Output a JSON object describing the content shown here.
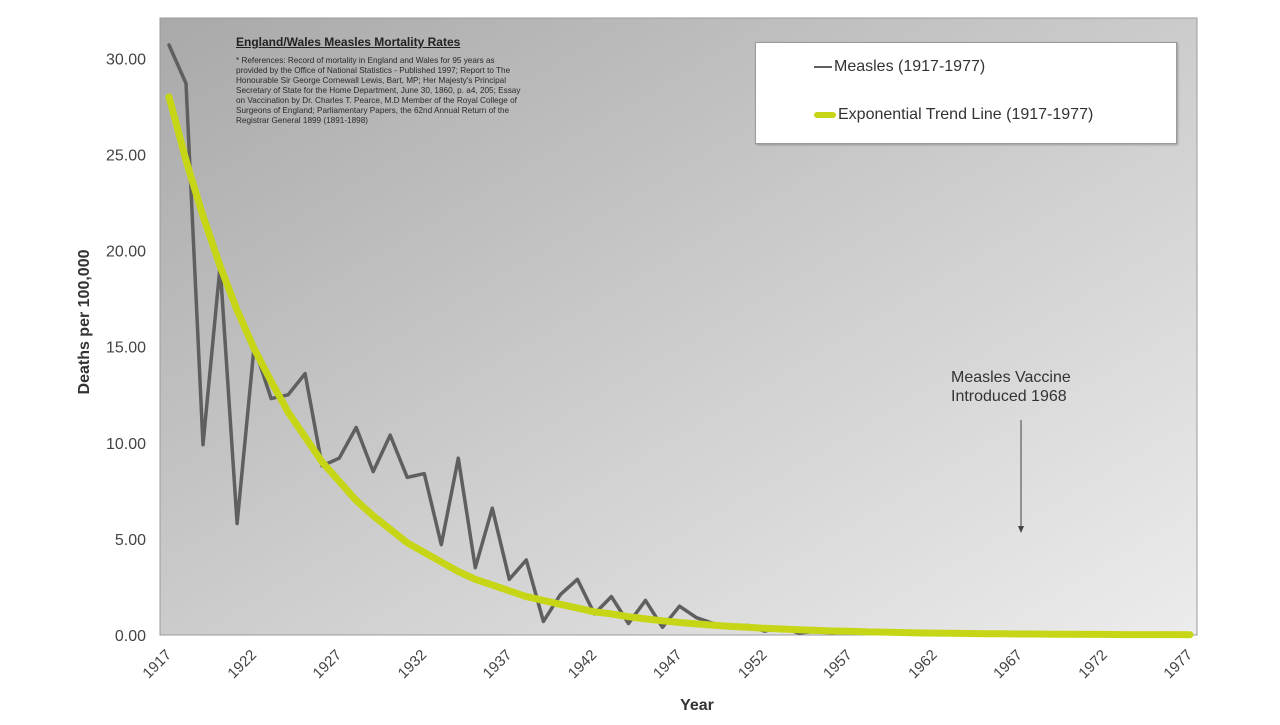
{
  "chart_data": {
    "type": "line",
    "title": "England/Wales Measles Mortality Rates",
    "references": "* References: Record of mortality in England and Wales for 95 years as provided by the Office of National Statistics - Published 1997; Report to The Honourable Sir George Cornewall Lewis, Bart, MP; Her Majesty's Principal Secretary of State for the Home Department, June 30, 1860, p. a4, 205; Essay on Vaccination by Dr. Charles T. Pearce, M.D Member of the Royal College of Surgeons of England; Parliamentary Papers, the 62nd Annual Return of the Registrar General 1899 (1891-1898)",
    "xlabel": "Year",
    "ylabel": "Deaths per 100,000",
    "ylim": [
      0,
      32
    ],
    "xlim": [
      1917,
      1977
    ],
    "x_ticks": [
      "1917",
      "1922",
      "1927",
      "1932",
      "1937",
      "1942",
      "1947",
      "1952",
      "1957",
      "1962",
      "1967",
      "1972",
      "1977"
    ],
    "y_ticks": [
      "0.00",
      "5.00",
      "10.00",
      "15.00",
      "20.00",
      "25.00",
      "30.00"
    ],
    "grid": false,
    "legend_position": "top-right",
    "annotation": {
      "line1": "Measles Vaccine",
      "line2": "Introduced 1968",
      "year": 1968
    },
    "series": [
      {
        "name": "Measles (1917-1977)",
        "color": "#5f5f5f",
        "x": [
          1917,
          1918,
          1919,
          1920,
          1921,
          1922,
          1923,
          1924,
          1925,
          1926,
          1927,
          1928,
          1929,
          1930,
          1931,
          1932,
          1933,
          1934,
          1935,
          1936,
          1937,
          1938,
          1939,
          1940,
          1941,
          1942,
          1943,
          1944,
          1945,
          1946,
          1947,
          1948,
          1949,
          1950,
          1951,
          1952,
          1953,
          1954,
          1955,
          1956,
          1957,
          1958,
          1959,
          1960,
          1961,
          1962,
          1963,
          1964,
          1965,
          1966,
          1967,
          1968,
          1969,
          1970,
          1971,
          1972,
          1973,
          1974,
          1975,
          1976,
          1977
        ],
        "values": [
          30.7,
          28.7,
          9.9,
          19.2,
          5.8,
          15.0,
          12.3,
          12.5,
          13.6,
          8.8,
          9.2,
          10.8,
          8.5,
          10.4,
          8.2,
          8.4,
          4.7,
          9.2,
          3.5,
          6.6,
          2.9,
          3.9,
          0.7,
          2.1,
          2.9,
          1.1,
          2.0,
          0.6,
          1.8,
          0.4,
          1.5,
          0.9,
          0.6,
          0.4,
          0.5,
          0.2,
          0.4,
          0.1,
          0.2,
          0.1,
          0.2,
          0.1,
          0.1,
          0.1,
          0.1,
          0.1,
          0.05,
          0.05,
          0.05,
          0.04,
          0.03,
          0.02,
          0.02,
          0.02,
          0.01,
          0.01,
          0.01,
          0.01,
          0.01,
          0.01,
          0.01
        ]
      },
      {
        "name": "Exponential Trend Line (1917-1977)",
        "color": "#c6d617",
        "x": [
          1917,
          1918,
          1919,
          1920,
          1921,
          1922,
          1923,
          1924,
          1925,
          1926,
          1927,
          1928,
          1929,
          1930,
          1931,
          1932,
          1933,
          1934,
          1935,
          1936,
          1937,
          1938,
          1939,
          1940,
          1941,
          1942,
          1943,
          1944,
          1945,
          1946,
          1947,
          1948,
          1949,
          1950,
          1951,
          1952,
          1953,
          1954,
          1955,
          1956,
          1957,
          1958,
          1959,
          1960,
          1961,
          1962,
          1963,
          1964,
          1965,
          1966,
          1967,
          1968,
          1969,
          1970,
          1971,
          1972,
          1973,
          1974,
          1975,
          1976,
          1977
        ],
        "values": [
          28.0,
          24.7,
          21.8,
          19.2,
          16.9,
          14.9,
          13.2,
          11.6,
          10.3,
          9.0,
          8.0,
          7.0,
          6.2,
          5.5,
          4.8,
          4.3,
          3.8,
          3.3,
          2.9,
          2.6,
          2.3,
          2.0,
          1.8,
          1.6,
          1.4,
          1.2,
          1.1,
          0.95,
          0.84,
          0.74,
          0.65,
          0.58,
          0.51,
          0.45,
          0.4,
          0.35,
          0.31,
          0.27,
          0.24,
          0.21,
          0.19,
          0.16,
          0.15,
          0.13,
          0.11,
          0.1,
          0.09,
          0.08,
          0.07,
          0.06,
          0.05,
          0.05,
          0.04,
          0.04,
          0.03,
          0.03,
          0.02,
          0.02,
          0.02,
          0.02,
          0.01
        ]
      }
    ]
  }
}
